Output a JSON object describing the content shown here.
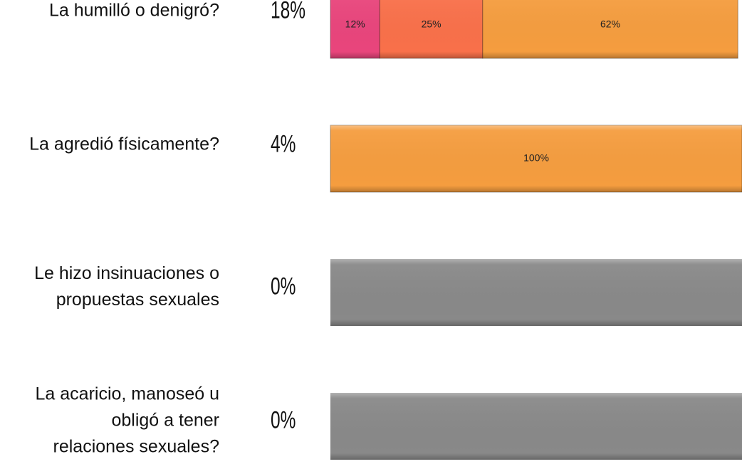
{
  "chart_data": {
    "type": "bar",
    "orientation": "horizontal",
    "stacked": true,
    "categories": [
      "La humilló o denigró?",
      "La agredió físicamente?",
      "Le hizo insinuaciones o\npropuestas sexuales",
      "La acaricio, manoseó u\nobligó a tener\nrelaciones sexuales?"
    ],
    "shares": [
      18,
      4,
      0,
      0
    ],
    "share_labels": [
      "18%",
      "4%",
      "0%",
      "0%"
    ],
    "xlim": [
      0,
      100
    ],
    "empty_color": "#898989",
    "series": [
      {
        "color": "#e9457c",
        "values": [
          12,
          null,
          null,
          null
        ],
        "value_labels": [
          "12%",
          null,
          null,
          null
        ]
      },
      {
        "color": "#f9704a",
        "values": [
          25,
          null,
          null,
          null
        ],
        "value_labels": [
          "25%",
          null,
          null,
          null
        ]
      },
      {
        "color": "#f59d3f",
        "values": [
          62,
          100,
          null,
          null
        ],
        "value_labels": [
          "62%",
          "100%",
          null,
          null
        ]
      }
    ]
  }
}
